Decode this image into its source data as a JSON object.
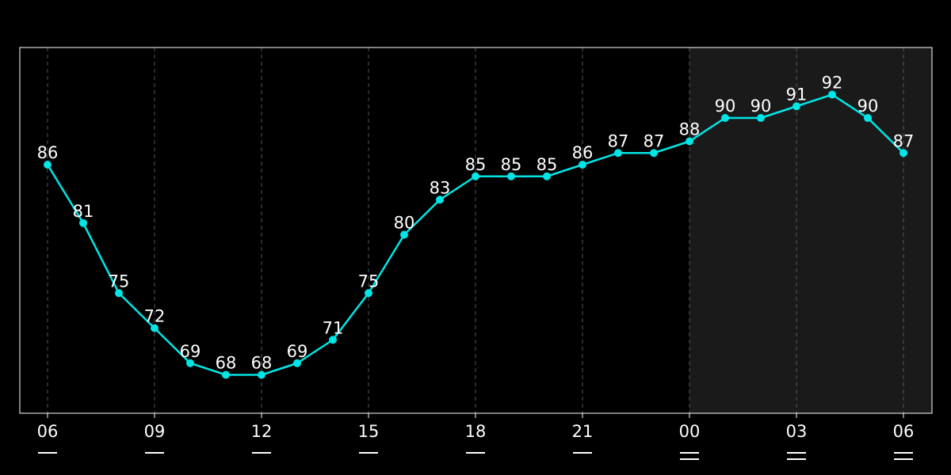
{
  "chart_data": {
    "type": "line",
    "x_tick_labels": [
      "06",
      "09",
      "12",
      "15",
      "18",
      "21",
      "00",
      "03",
      "06"
    ],
    "values": [
      86,
      81,
      75,
      72,
      69,
      68,
      68,
      69,
      71,
      75,
      80,
      83,
      85,
      85,
      85,
      86,
      87,
      87,
      88,
      90,
      90,
      91,
      92,
      90,
      87
    ],
    "data_labels_shown": true,
    "grid": "vertical dashed lines at labeled hours",
    "highlighted_period": "from 00 to end (shaded)",
    "colors": {
      "background": "#000000",
      "line": "#00e5e5",
      "point": "#00e5e5",
      "grid": "#555555",
      "frame": "#ffffff",
      "shade": "#1a1a1a",
      "text": "#ffffff"
    }
  }
}
